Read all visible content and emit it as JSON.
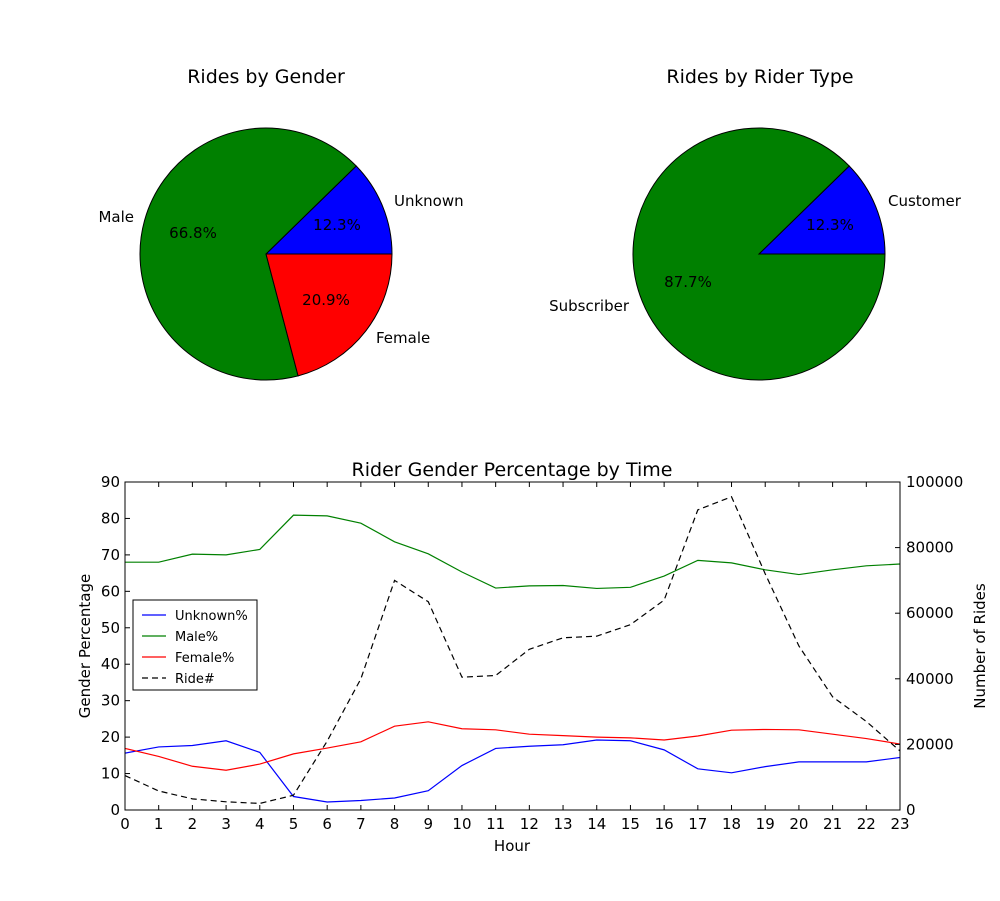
{
  "chart_data": [
    {
      "type": "pie",
      "title": "Rides by Gender",
      "slices": [
        {
          "label": "Unknown",
          "value": 12.3,
          "pct_label": "12.3%",
          "color": "#0000ff"
        },
        {
          "label": "Male",
          "value": 66.8,
          "pct_label": "66.8%",
          "color": "#008000"
        },
        {
          "label": "Female",
          "value": 20.9,
          "pct_label": "20.9%",
          "color": "#ff0000"
        }
      ]
    },
    {
      "type": "pie",
      "title": "Rides by Rider Type",
      "slices": [
        {
          "label": "Customer",
          "value": 12.3,
          "pct_label": "12.3%",
          "color": "#0000ff"
        },
        {
          "label": "Subscriber",
          "value": 87.7,
          "pct_label": "87.7%",
          "color": "#008000"
        }
      ]
    },
    {
      "type": "line",
      "title": "Rider Gender Percentage by Time",
      "xlabel": "Hour",
      "ylabel": "Gender Percentage",
      "y2label": "Number of Rides",
      "x": [
        0,
        1,
        2,
        3,
        4,
        5,
        6,
        7,
        8,
        9,
        10,
        11,
        12,
        13,
        14,
        15,
        16,
        17,
        18,
        19,
        20,
        21,
        22,
        23
      ],
      "xlim": [
        0,
        23
      ],
      "ylim": [
        0,
        90
      ],
      "y2lim": [
        0,
        100000
      ],
      "xticks": [
        "0",
        "1",
        "2",
        "3",
        "4",
        "5",
        "6",
        "7",
        "8",
        "9",
        "10",
        "11",
        "12",
        "13",
        "14",
        "15",
        "16",
        "17",
        "18",
        "19",
        "20",
        "21",
        "22",
        "23"
      ],
      "yticks": [
        "0",
        "10",
        "20",
        "30",
        "40",
        "50",
        "60",
        "70",
        "80",
        "90"
      ],
      "y2ticks": [
        "0",
        "20000",
        "40000",
        "60000",
        "80000",
        "100000"
      ],
      "legend_position": "center-left",
      "series": [
        {
          "name": "Unknown%",
          "axis": "left",
          "color": "#0000ff",
          "dash": "solid",
          "values": [
            15.6,
            17.3,
            17.7,
            19.0,
            15.8,
            3.7,
            2.2,
            2.6,
            3.3,
            5.3,
            12.2,
            16.9,
            17.5,
            17.9,
            19.2,
            19.0,
            16.5,
            11.3,
            10.2,
            11.9,
            13.2,
            13.2,
            13.2,
            14.4
          ]
        },
        {
          "name": "Male%",
          "axis": "left",
          "color": "#008000",
          "dash": "solid",
          "values": [
            68.0,
            68.0,
            70.2,
            70.0,
            71.5,
            80.9,
            80.7,
            78.7,
            73.6,
            70.3,
            65.3,
            60.9,
            61.5,
            61.6,
            60.8,
            61.1,
            64.2,
            68.5,
            67.8,
            65.9,
            64.6,
            65.9,
            67.0,
            67.5
          ]
        },
        {
          "name": "Female%",
          "axis": "left",
          "color": "#ff0000",
          "dash": "solid",
          "values": [
            16.9,
            14.7,
            12.0,
            10.9,
            12.6,
            15.4,
            17.0,
            18.7,
            23.0,
            24.2,
            22.3,
            22.0,
            20.8,
            20.4,
            20.0,
            19.8,
            19.2,
            20.3,
            21.9,
            22.1,
            22.0,
            20.8,
            19.6,
            18.1
          ]
        },
        {
          "name": "Ride#",
          "axis": "right",
          "color": "#000000",
          "dash": "dashed",
          "values": [
            10500,
            5800,
            3400,
            2500,
            2000,
            4500,
            21000,
            40000,
            70000,
            63500,
            40500,
            41000,
            49000,
            52500,
            53000,
            56500,
            64000,
            91500,
            95500,
            72000,
            50000,
            34500,
            27000,
            18000
          ]
        }
      ]
    }
  ]
}
